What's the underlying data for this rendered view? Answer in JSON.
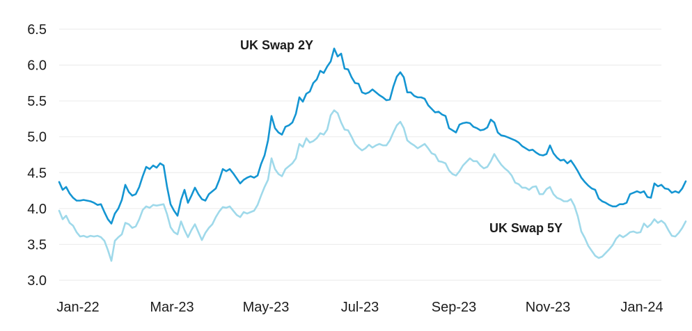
{
  "page": {
    "background": "#ffffff"
  },
  "chart_data": {
    "type": "line",
    "title": "",
    "xlabel": "",
    "ylabel": "",
    "ylim": [
      3.0,
      6.5
    ],
    "y_tick_step": 0.5,
    "grid": "horizontal-only",
    "grid_color": "#eaeaea",
    "axis_text_color": "#1c1c1c",
    "legend_position": "inline-labels-on-chart",
    "x_tick_labels": [
      "Jan-22",
      "Mar-23",
      "May-23",
      "Jul-23",
      "Sep-23",
      "Nov-23",
      "Jan-24"
    ],
    "y_tick_labels": [
      "6.5",
      "6.0",
      "5.5",
      "5.0",
      "4.5",
      "4.0",
      "3.5",
      "3.0"
    ],
    "series": [
      {
        "name": "UK Swap 2Y",
        "color": "#1495d2",
        "label_color": "#1495d2",
        "values": [
          4.37,
          4.26,
          4.3,
          4.21,
          4.15,
          4.11,
          4.11,
          4.12,
          4.11,
          4.1,
          4.08,
          4.05,
          4.06,
          3.95,
          3.85,
          3.79,
          3.93,
          4.0,
          4.12,
          4.33,
          4.23,
          4.18,
          4.2,
          4.3,
          4.45,
          4.58,
          4.55,
          4.6,
          4.57,
          4.63,
          4.6,
          4.3,
          4.06,
          3.97,
          3.9,
          4.12,
          4.26,
          4.08,
          4.18,
          4.29,
          4.2,
          4.13,
          4.11,
          4.2,
          4.24,
          4.28,
          4.4,
          4.55,
          4.52,
          4.55,
          4.49,
          4.42,
          4.35,
          4.4,
          4.43,
          4.45,
          4.43,
          4.46,
          4.62,
          4.74,
          4.95,
          5.29,
          5.12,
          5.06,
          5.03,
          5.14,
          5.16,
          5.2,
          5.32,
          5.55,
          5.49,
          5.6,
          5.63,
          5.75,
          5.8,
          5.92,
          5.89,
          5.98,
          6.05,
          6.23,
          6.12,
          6.16,
          5.95,
          5.94,
          5.83,
          5.75,
          5.74,
          5.62,
          5.6,
          5.62,
          5.66,
          5.62,
          5.58,
          5.55,
          5.51,
          5.52,
          5.7,
          5.84,
          5.9,
          5.83,
          5.62,
          5.62,
          5.57,
          5.55,
          5.55,
          5.53,
          5.44,
          5.39,
          5.34,
          5.35,
          5.31,
          5.29,
          5.12,
          5.09,
          5.06,
          5.17,
          5.19,
          5.2,
          5.19,
          5.14,
          5.12,
          5.09,
          5.1,
          5.13,
          5.24,
          5.2,
          5.06,
          5.02,
          5.01,
          4.99,
          4.97,
          4.95,
          4.92,
          4.87,
          4.84,
          4.81,
          4.82,
          4.78,
          4.75,
          4.74,
          4.76,
          4.88,
          4.77,
          4.71,
          4.67,
          4.68,
          4.63,
          4.67,
          4.6,
          4.52,
          4.43,
          4.37,
          4.32,
          4.28,
          4.26,
          4.14,
          4.1,
          4.08,
          4.05,
          4.03,
          4.03,
          4.06,
          4.06,
          4.08,
          4.2,
          4.22,
          4.24,
          4.22,
          4.24,
          4.16,
          4.15,
          4.35,
          4.31,
          4.33,
          4.28,
          4.27,
          4.22,
          4.24,
          4.22,
          4.28,
          4.38
        ]
      },
      {
        "name": "UK Swap 5Y",
        "color": "#9fd9ea",
        "label_color": "#7fcde2",
        "values": [
          3.97,
          3.85,
          3.9,
          3.8,
          3.76,
          3.67,
          3.61,
          3.62,
          3.6,
          3.62,
          3.61,
          3.62,
          3.6,
          3.55,
          3.42,
          3.27,
          3.55,
          3.6,
          3.64,
          3.8,
          3.78,
          3.73,
          3.75,
          3.85,
          3.98,
          4.03,
          4.01,
          4.05,
          4.04,
          4.05,
          4.06,
          3.92,
          3.74,
          3.67,
          3.64,
          3.82,
          3.7,
          3.6,
          3.7,
          3.78,
          3.67,
          3.56,
          3.66,
          3.73,
          3.78,
          3.88,
          3.96,
          4.02,
          4.01,
          4.03,
          3.97,
          3.91,
          3.88,
          3.95,
          3.93,
          3.95,
          3.97,
          4.05,
          4.18,
          4.3,
          4.4,
          4.7,
          4.55,
          4.48,
          4.45,
          4.55,
          4.59,
          4.63,
          4.7,
          4.9,
          4.86,
          4.98,
          4.92,
          4.94,
          4.98,
          5.05,
          5.03,
          5.1,
          5.3,
          5.37,
          5.33,
          5.2,
          5.1,
          5.09,
          5.0,
          4.9,
          4.85,
          4.81,
          4.84,
          4.89,
          4.85,
          4.88,
          4.9,
          4.88,
          4.88,
          4.95,
          5.06,
          5.16,
          5.21,
          5.12,
          4.95,
          4.91,
          4.88,
          4.84,
          4.87,
          4.9,
          4.84,
          4.77,
          4.75,
          4.66,
          4.65,
          4.63,
          4.53,
          4.48,
          4.46,
          4.52,
          4.6,
          4.65,
          4.7,
          4.66,
          4.66,
          4.6,
          4.56,
          4.58,
          4.66,
          4.76,
          4.68,
          4.61,
          4.56,
          4.52,
          4.46,
          4.36,
          4.34,
          4.29,
          4.29,
          4.26,
          4.3,
          4.31,
          4.2,
          4.2,
          4.27,
          4.3,
          4.2,
          4.15,
          4.13,
          4.1,
          4.1,
          4.13,
          4.04,
          3.89,
          3.68,
          3.59,
          3.48,
          3.41,
          3.34,
          3.31,
          3.33,
          3.38,
          3.43,
          3.49,
          3.58,
          3.63,
          3.6,
          3.63,
          3.67,
          3.68,
          3.66,
          3.67,
          3.79,
          3.74,
          3.78,
          3.85,
          3.8,
          3.83,
          3.79,
          3.7,
          3.62,
          3.61,
          3.66,
          3.73,
          3.82
        ]
      }
    ]
  }
}
